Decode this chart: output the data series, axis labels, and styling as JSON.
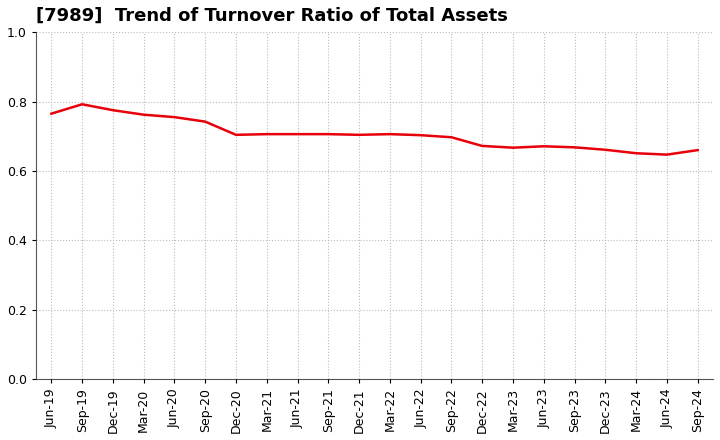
{
  "title": "[7989]  Trend of Turnover Ratio of Total Assets",
  "x_labels": [
    "Jun-19",
    "Sep-19",
    "Dec-19",
    "Mar-20",
    "Jun-20",
    "Sep-20",
    "Dec-20",
    "Mar-21",
    "Jun-21",
    "Sep-21",
    "Dec-21",
    "Mar-22",
    "Jun-22",
    "Sep-22",
    "Dec-22",
    "Mar-23",
    "Jun-23",
    "Sep-23",
    "Dec-23",
    "Mar-24",
    "Jun-24",
    "Sep-24"
  ],
  "y_values": [
    0.765,
    0.792,
    0.775,
    0.762,
    0.755,
    0.742,
    0.704,
    0.706,
    0.706,
    0.706,
    0.704,
    0.706,
    0.703,
    0.697,
    0.672,
    0.667,
    0.671,
    0.668,
    0.661,
    0.651,
    0.647,
    0.66
  ],
  "line_color": "#e8000b",
  "background_color": "#ffffff",
  "plot_bg_color": "#ffffff",
  "ylim": [
    0.0,
    1.0
  ],
  "yticks": [
    0.0,
    0.2,
    0.4,
    0.6,
    0.8,
    1.0
  ],
  "title_fontsize": 13,
  "tick_fontsize": 9,
  "line_width": 1.8,
  "grid_color": "#bbbbbb",
  "grid_style": ":"
}
